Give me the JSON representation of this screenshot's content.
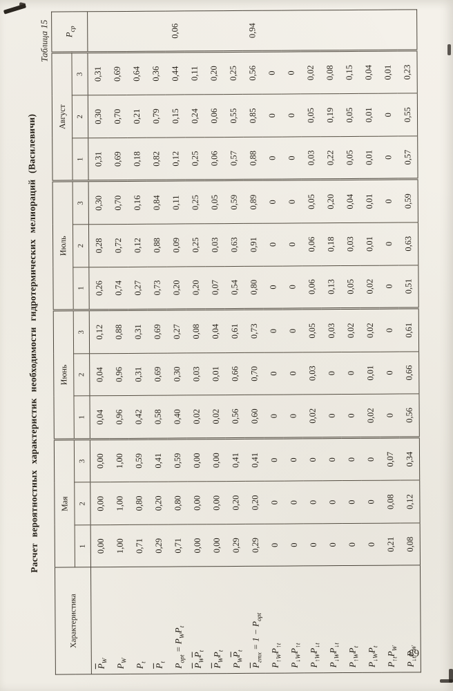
{
  "page": {
    "table_number": "Таблица 15",
    "title": "Расчет вероятностных характеристик необходимости гидротермических мелиораций (Василевичи)",
    "page_number": "89"
  },
  "table": {
    "corner_header": "Характеристика",
    "pcp_header": "P_{ср}",
    "months": [
      {
        "label": "Мая",
        "sub": [
          "1",
          "2",
          "3"
        ]
      },
      {
        "label": "Июнь",
        "sub": [
          "1",
          "2",
          "3"
        ]
      },
      {
        "label": "Июль",
        "sub": [
          "1",
          "2",
          "3"
        ]
      },
      {
        "label": "Август",
        "sub": [
          "1",
          "2",
          "3"
        ]
      }
    ],
    "rows": [
      {
        "formula": "~P~_{W}",
        "values": [
          "0,00",
          "0,00",
          "0,00",
          "0,04",
          "0,04",
          "0,12",
          "0,26",
          "0,28",
          "0,30",
          "0,31",
          "0,30",
          "0,31"
        ],
        "pcp": ""
      },
      {
        "formula": "P_{W}",
        "values": [
          "1,00",
          "1,00",
          "1,00",
          "0,96",
          "0,96",
          "0,88",
          "0,74",
          "0,72",
          "0,70",
          "0,69",
          "0,70",
          "0,69"
        ],
        "pcp": ""
      },
      {
        "formula": "P_{t}",
        "values": [
          "0,71",
          "0,80",
          "0,59",
          "0,42",
          "0,31",
          "0,31",
          "0,27",
          "0,12",
          "0,16",
          "0,18",
          "0,21",
          "0,64"
        ],
        "pcp": ""
      },
      {
        "formula": "~P~_{t}",
        "values": [
          "0,29",
          "0,20",
          "0,41",
          "0,58",
          "0,69",
          "0,69",
          "0,73",
          "0,88",
          "0,84",
          "0,82",
          "0,79",
          "0,36"
        ],
        "pcp": ""
      },
      {
        "formula": "P_{opt} = P_{W}P_{t}",
        "values": [
          "0,71",
          "0,80",
          "0,59",
          "0,40",
          "0,30",
          "0,27",
          "0,20",
          "0,09",
          "0,11",
          "0,12",
          "0,15",
          "0,44"
        ],
        "pcp": "0,06"
      },
      {
        "formula": "~P~_{W}~P~_{t}",
        "values": [
          "0,00",
          "0,00",
          "0,00",
          "0,02",
          "0,03",
          "0,08",
          "0,20",
          "0,25",
          "0,25",
          "0,25",
          "0,24",
          "0,11"
        ],
        "pcp": ""
      },
      {
        "formula": "~P~_{W}P_{t}",
        "values": [
          "0,00",
          "0,00",
          "0,00",
          "0,02",
          "0,01",
          "0,04",
          "0,07",
          "0,03",
          "0,05",
          "0,06",
          "0,06",
          "0,20"
        ],
        "pcp": ""
      },
      {
        "formula": "P_{W}~P~_{t}",
        "values": [
          "0,29",
          "0,20",
          "0,41",
          "0,56",
          "0,66",
          "0,61",
          "0,54",
          "0,63",
          "0,59",
          "0,57",
          "0,55",
          "0,25"
        ],
        "pcp": ""
      },
      {
        "formula": "~P~_{гтх} = 1 − P_{opt}",
        "values": [
          "0,29",
          "0,20",
          "0,41",
          "0,60",
          "0,70",
          "0,73",
          "0,80",
          "0,91",
          "0,89",
          "0,88",
          "0,85",
          "0,56"
        ],
        "pcp": "0,94"
      },
      {
        "formula": "P_{↑W}P_{↑t}",
        "values": [
          "0",
          "0",
          "0",
          "0",
          "0",
          "0",
          "0",
          "0",
          "0",
          "0",
          "0",
          "0"
        ],
        "pcp": ""
      },
      {
        "formula": "P_{↓W}P_{↑t}",
        "values": [
          "0",
          "0",
          "0",
          "0",
          "0",
          "0",
          "0",
          "0",
          "0",
          "0",
          "0",
          "0"
        ],
        "pcp": ""
      },
      {
        "formula": "P_{↑W}P_{↓t}",
        "values": [
          "0",
          "0",
          "0",
          "0,02",
          "0,03",
          "0,05",
          "0,06",
          "0,06",
          "0,05",
          "0,03",
          "0,05",
          "0,02"
        ],
        "pcp": ""
      },
      {
        "formula": "P_{↓W}P_{↓t}",
        "values": [
          "0",
          "0",
          "0",
          "0",
          "0",
          "0,03",
          "0,13",
          "0,18",
          "0,20",
          "0,22",
          "0,19",
          "0,08"
        ],
        "pcp": ""
      },
      {
        "formula": "P_{↑W}P_{t}",
        "values": [
          "0",
          "0",
          "0",
          "0",
          "0",
          "0,02",
          "0,05",
          "0,03",
          "0,04",
          "0,05",
          "0,05",
          "0,15"
        ],
        "pcp": ""
      },
      {
        "formula": "P_{↓W}P_{t}",
        "values": [
          "0",
          "0",
          "0",
          "0,02",
          "0,01",
          "0,02",
          "0,02",
          "0,01",
          "0,01",
          "0,01",
          "0,01",
          "0,04"
        ],
        "pcp": ""
      },
      {
        "formula": "P_{↑t}P_{W}",
        "values": [
          "0,21",
          "0,08",
          "0,07",
          "0",
          "0",
          "0",
          "0",
          "0",
          "0",
          "0",
          "0",
          "0,01"
        ],
        "pcp": ""
      },
      {
        "formula": "P_{↓t}P_{W}",
        "values": [
          "0,08",
          "0,12",
          "0,34",
          "0,56",
          "0,66",
          "0,61",
          "0,51",
          "0,63",
          "0,59",
          "0,57",
          "0,55",
          "0,23"
        ],
        "pcp": ""
      }
    ]
  }
}
